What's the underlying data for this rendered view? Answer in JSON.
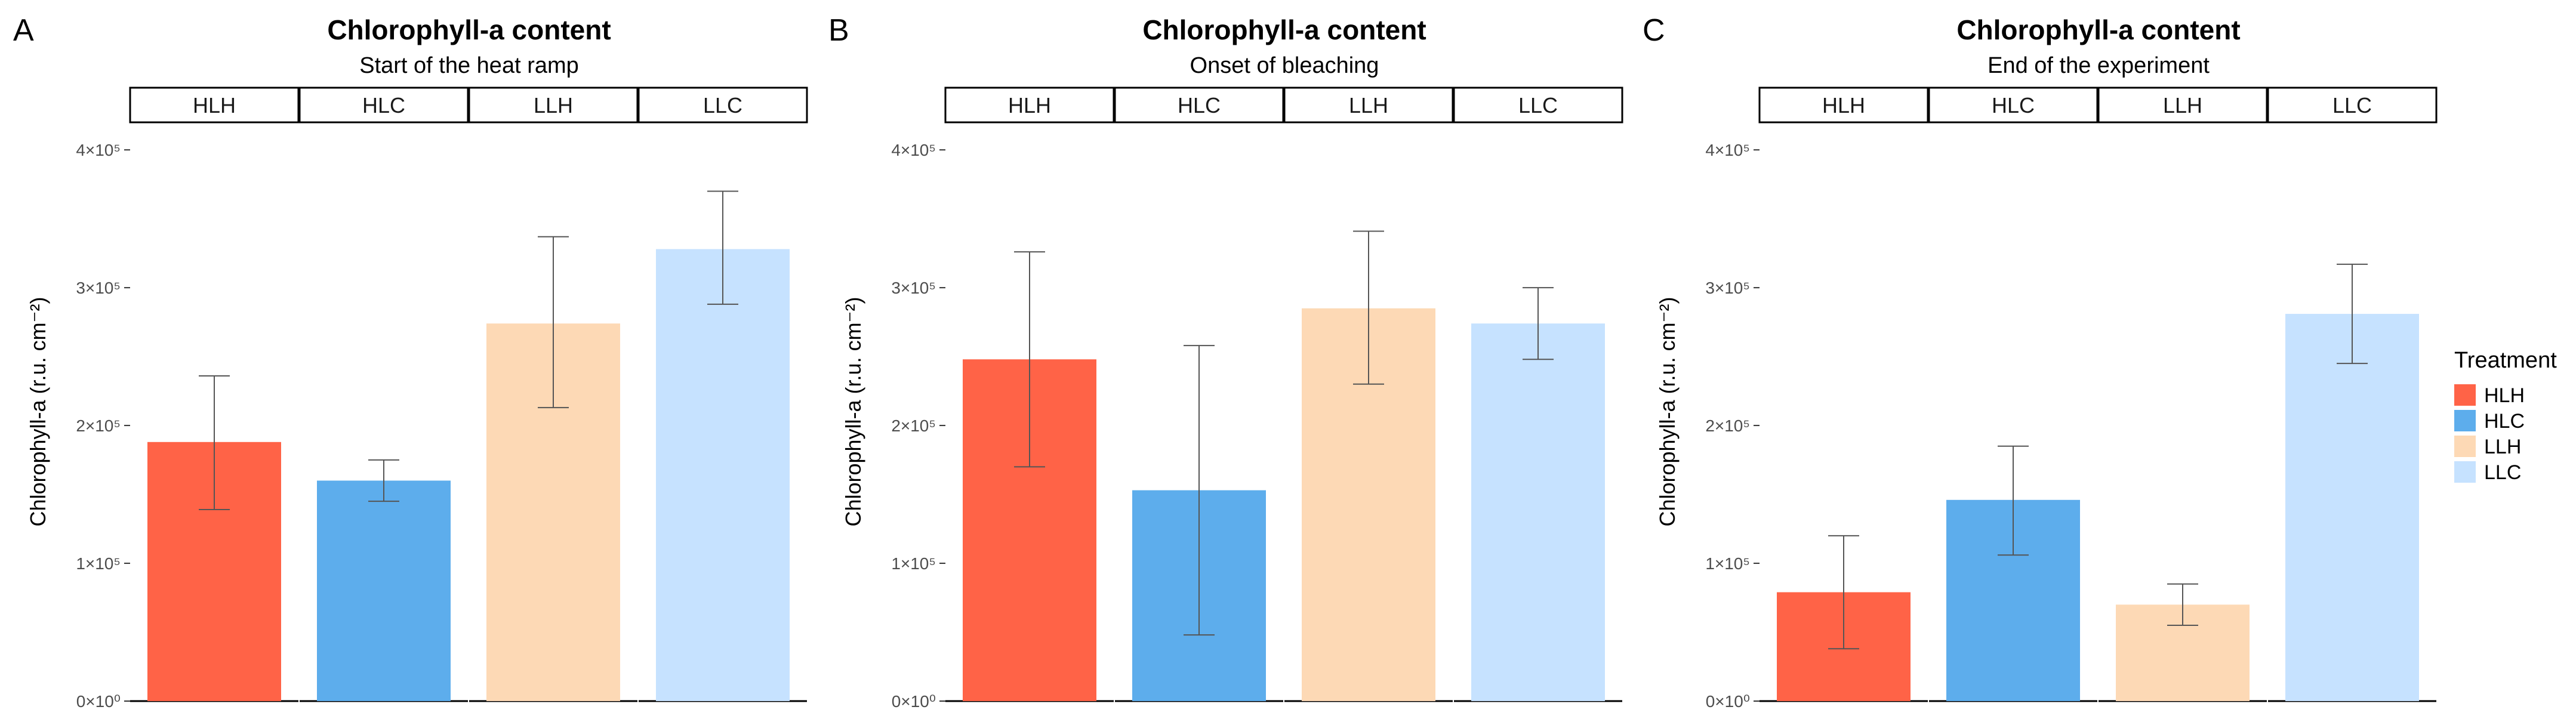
{
  "treatments": [
    "HLH",
    "HLC",
    "LLH",
    "LLC"
  ],
  "colors": {
    "HLH": "#FF6347",
    "HLC": "#5DADEC",
    "LLH": "#FDD9B5",
    "LLC": "#C6E2FF"
  },
  "legend": {
    "title": "Treatment",
    "position": "right",
    "items": [
      "HLH",
      "HLC",
      "LLH",
      "LLC"
    ]
  },
  "chart_data": [
    {
      "type": "bar",
      "panel_label": "A",
      "title": "Chlorophyll-a content",
      "subtitle": "Start of the heat ramp",
      "ylabel": "Chlorophyll-a (r.u. cm⁻²)",
      "ylim": [
        0,
        420000
      ],
      "yticks": [
        0,
        100000,
        200000,
        300000,
        400000
      ],
      "ytick_labels": [
        "0×10⁰",
        "1×10⁵",
        "2×10⁵",
        "3×10⁵",
        "4×10⁵"
      ],
      "categories": [
        "HLH",
        "HLC",
        "LLH",
        "LLC"
      ],
      "values": [
        188000,
        160000,
        274000,
        328000
      ],
      "err_low": [
        139000,
        145000,
        213000,
        288000
      ],
      "err_high": [
        236000,
        175000,
        337000,
        370000
      ]
    },
    {
      "type": "bar",
      "panel_label": "B",
      "title": "Chlorophyll-a content",
      "subtitle": "Onset of bleaching",
      "ylabel": "Chlorophyll-a (r.u. cm⁻²)",
      "ylim": [
        0,
        420000
      ],
      "yticks": [
        0,
        100000,
        200000,
        300000,
        400000
      ],
      "ytick_labels": [
        "0×10⁰",
        "1×10⁵",
        "2×10⁵",
        "3×10⁵",
        "4×10⁵"
      ],
      "categories": [
        "HLH",
        "HLC",
        "LLH",
        "LLC"
      ],
      "values": [
        248000,
        153000,
        285000,
        274000
      ],
      "err_low": [
        170000,
        48000,
        230000,
        248000
      ],
      "err_high": [
        326000,
        258000,
        341000,
        300000
      ]
    },
    {
      "type": "bar",
      "panel_label": "C",
      "title": "Chlorophyll-a content",
      "subtitle": "End of the experiment",
      "ylabel": "Chlorophyll-a (r.u. cm⁻²)",
      "ylim": [
        0,
        420000
      ],
      "yticks": [
        0,
        100000,
        200000,
        300000,
        400000
      ],
      "ytick_labels": [
        "0×10⁰",
        "1×10⁵",
        "2×10⁵",
        "3×10⁵",
        "4×10⁵"
      ],
      "categories": [
        "HLH",
        "HLC",
        "LLH",
        "LLC"
      ],
      "values": [
        79000,
        146000,
        70000,
        281000
      ],
      "err_low": [
        38000,
        106000,
        55000,
        245000
      ],
      "err_high": [
        120000,
        185000,
        85000,
        317000
      ]
    }
  ]
}
